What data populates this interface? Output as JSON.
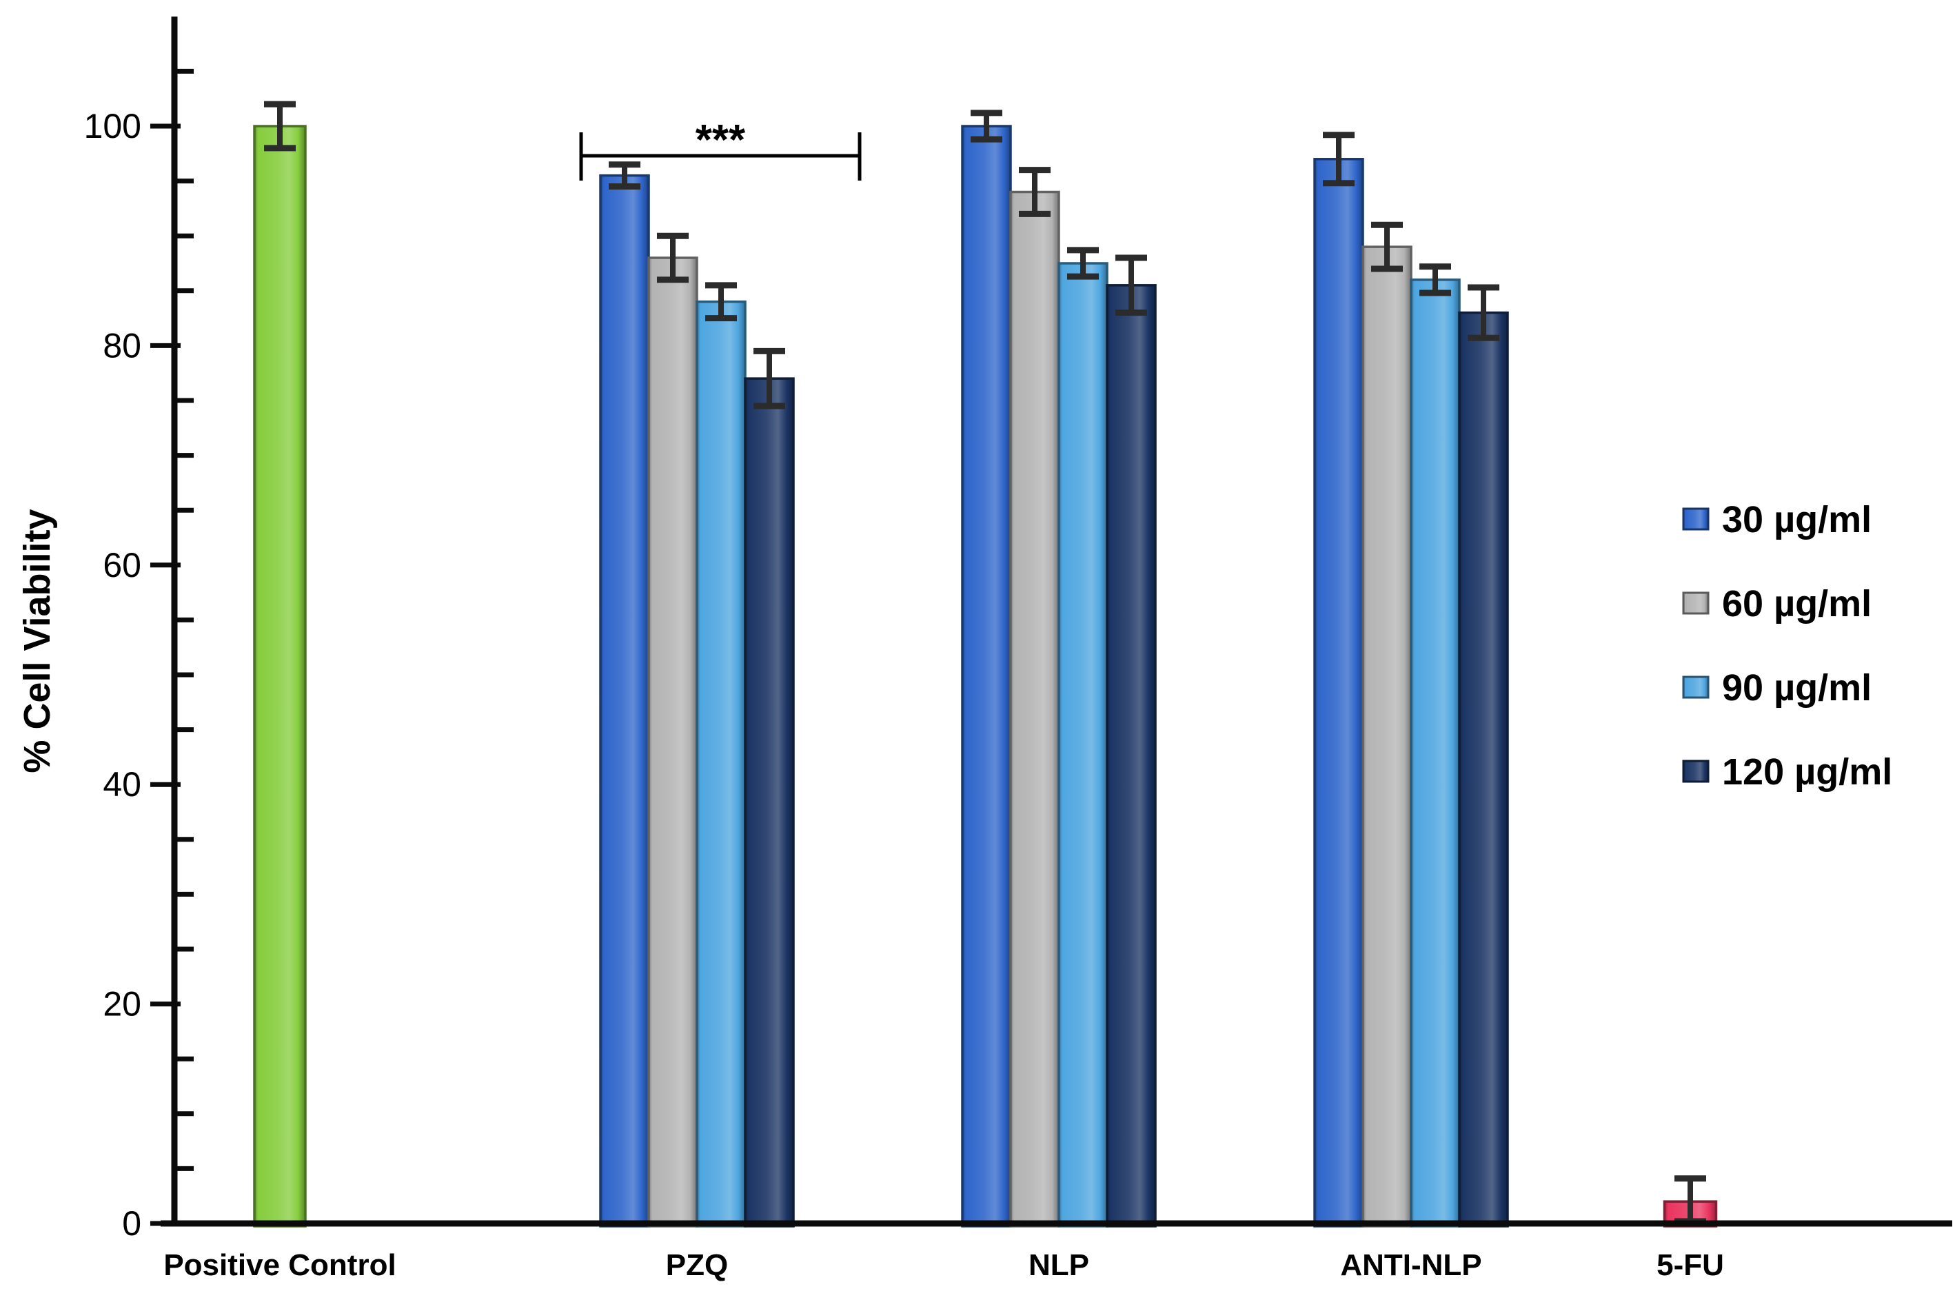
{
  "chart_data": {
    "type": "bar",
    "title": "",
    "ylabel": "% Cell Viability",
    "xlabel": "",
    "ylim": [
      0,
      110
    ],
    "yticks_major": [
      0,
      20,
      40,
      60,
      80,
      100
    ],
    "ytick_minor_step": 5,
    "grid": false,
    "legend_position": "right",
    "error_bars": true,
    "legend": [
      {
        "label": "30 µg/ml",
        "color": "#2F66CB"
      },
      {
        "label": "60 µg/ml",
        "color": "#B3B3B3"
      },
      {
        "label": "90 µg/ml",
        "color": "#4FA6E0"
      },
      {
        "label": "120 µg/ml",
        "color": "#1C3564"
      }
    ],
    "groups": [
      {
        "label": "Positive Control",
        "bars": [
          {
            "series": "Positive Control",
            "value": 100,
            "error": 2,
            "color": "#86CD3E"
          }
        ]
      },
      {
        "label": "PZQ",
        "significance": "***",
        "bars": [
          {
            "series": "30 µg/ml",
            "value": 95.5,
            "error": 1,
            "color": "#2F66CB"
          },
          {
            "series": "60 µg/ml",
            "value": 88,
            "error": 2,
            "color": "#B3B3B3"
          },
          {
            "series": "90 µg/ml",
            "value": 84,
            "error": 1.5,
            "color": "#4FA6E0"
          },
          {
            "series": "120 µg/ml",
            "value": 77,
            "error": 2.5,
            "color": "#1C3564"
          }
        ]
      },
      {
        "label": "NLP",
        "bars": [
          {
            "series": "30 µg/ml",
            "value": 100,
            "error": 1.2,
            "color": "#2F66CB"
          },
          {
            "series": "60 µg/ml",
            "value": 94,
            "error": 2,
            "color": "#B3B3B3"
          },
          {
            "series": "90 µg/ml",
            "value": 87.5,
            "error": 1.2,
            "color": "#4FA6E0"
          },
          {
            "series": "120 µg/ml",
            "value": 85.5,
            "error": 2.5,
            "color": "#1C3564"
          }
        ]
      },
      {
        "label": "ANTI-NLP",
        "bars": [
          {
            "series": "30 µg/ml",
            "value": 97,
            "error": 2.2,
            "color": "#2F66CB"
          },
          {
            "series": "60 µg/ml",
            "value": 89,
            "error": 2,
            "color": "#B3B3B3"
          },
          {
            "series": "90 µg/ml",
            "value": 86,
            "error": 1.2,
            "color": "#4FA6E0"
          },
          {
            "series": "120 µg/ml",
            "value": 83,
            "error": 2.3,
            "color": "#1C3564"
          }
        ]
      },
      {
        "label": "5-FU",
        "bars": [
          {
            "series": "5-FU",
            "value": 2,
            "error": 2.1,
            "color": "#EA3560"
          }
        ]
      }
    ],
    "colors": {
      "axis": "#0B0B0B",
      "error_bar": "#2B2B2B",
      "text": "#000000"
    }
  }
}
